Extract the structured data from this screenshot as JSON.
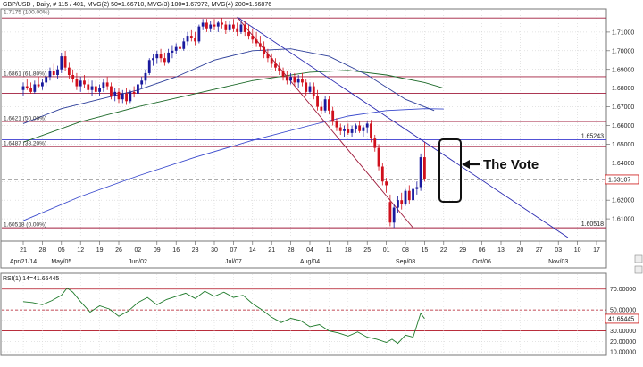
{
  "header": {
    "symbol_line": "GBP/USD , Daily, # 115 / 401, MVG(2) 50=1.66710, MVG(3) 100=1.67972, MVG(4) 200=1.66876",
    "top_partial_label": "1.7175 (100.00%)"
  },
  "colors": {
    "bull_candle": "#1a1a9e",
    "bear_candle": "#d0101c",
    "mva50": "#2e3f9a",
    "mva100": "#1e6a2a",
    "mva200": "#3a4acd",
    "fib_line": "#a01c3c",
    "trend_line": "#2a2ab0",
    "rsi_line": "#1e7a2a"
  },
  "price_panel": {
    "ylim": [
      1.6,
      1.72
    ],
    "y_ticks": [
      "1.71000",
      "1.70000",
      "1.69000",
      "1.68000",
      "1.67000",
      "1.66000",
      "1.65000",
      "1.64000",
      "1.63000",
      "1.62000",
      "1.61000"
    ],
    "fib_levels": [
      {
        "price": 1.7175,
        "label": ""
      },
      {
        "price": 1.6861,
        "label": "1.6861 (61.80%)"
      },
      {
        "price": 1.6621,
        "label": "1.6621 (50.00%)"
      },
      {
        "price": 1.6487,
        "label": "1.6487 (38.20%)"
      },
      {
        "price": 1.6052,
        "label": "1.60518 (0.00%)"
      }
    ],
    "extra_levels": [
      {
        "price": 1.6772,
        "style": "solid"
      },
      {
        "price": 1.6524,
        "style": "blue"
      },
      {
        "price": 1.6311,
        "style": "dashed"
      }
    ],
    "right_labels": [
      {
        "price": 1.6524,
        "text": "1.65243",
        "boxed": false
      },
      {
        "price": 1.6311,
        "text": "1.63107",
        "boxed": true
      },
      {
        "price": 1.6052,
        "text": "1.60518",
        "boxed": false
      }
    ],
    "annotation": "The Vote"
  },
  "x_axis": {
    "day_ticks": [
      "21",
      "28",
      "05",
      "12",
      "19",
      "26",
      "02",
      "09",
      "16",
      "23",
      "30",
      "07",
      "14",
      "21",
      "28",
      "04",
      "11",
      "18",
      "25",
      "01",
      "08",
      "15",
      "22",
      "29",
      "06",
      "13",
      "20",
      "27",
      "03",
      "10",
      "17"
    ],
    "month_labels": [
      {
        "text": "Apr/21/14",
        "week": 0
      },
      {
        "text": "May/05",
        "week": 2
      },
      {
        "text": "Jun/02",
        "week": 6
      },
      {
        "text": "Jul/07",
        "week": 11
      },
      {
        "text": "Aug/04",
        "week": 15
      },
      {
        "text": "Sep/08",
        "week": 20
      },
      {
        "text": "Oct/06",
        "week": 24
      },
      {
        "text": "Nov/03",
        "week": 28
      }
    ]
  },
  "candles": [
    {
      "w": 0.0,
      "o": 1.679,
      "h": 1.683,
      "l": 1.676,
      "c": 1.681
    },
    {
      "w": 0.2,
      "o": 1.681,
      "h": 1.685,
      "l": 1.679,
      "c": 1.68
    },
    {
      "w": 0.4,
      "o": 1.68,
      "h": 1.683,
      "l": 1.677,
      "c": 1.678
    },
    {
      "w": 0.6,
      "o": 1.678,
      "h": 1.684,
      "l": 1.677,
      "c": 1.682
    },
    {
      "w": 0.8,
      "o": 1.682,
      "h": 1.686,
      "l": 1.68,
      "c": 1.681
    },
    {
      "w": 1.0,
      "o": 1.681,
      "h": 1.685,
      "l": 1.679,
      "c": 1.683
    },
    {
      "w": 1.2,
      "o": 1.683,
      "h": 1.688,
      "l": 1.681,
      "c": 1.686
    },
    {
      "w": 1.4,
      "o": 1.686,
      "h": 1.691,
      "l": 1.684,
      "c": 1.689
    },
    {
      "w": 1.6,
      "o": 1.689,
      "h": 1.693,
      "l": 1.686,
      "c": 1.687
    },
    {
      "w": 1.8,
      "o": 1.687,
      "h": 1.692,
      "l": 1.685,
      "c": 1.69
    },
    {
      "w": 2.0,
      "o": 1.69,
      "h": 1.699,
      "l": 1.688,
      "c": 1.697
    },
    {
      "w": 2.2,
      "o": 1.697,
      "h": 1.7,
      "l": 1.689,
      "c": 1.691
    },
    {
      "w": 2.4,
      "o": 1.691,
      "h": 1.694,
      "l": 1.685,
      "c": 1.687
    },
    {
      "w": 2.6,
      "o": 1.687,
      "h": 1.69,
      "l": 1.683,
      "c": 1.685
    },
    {
      "w": 2.8,
      "o": 1.685,
      "h": 1.688,
      "l": 1.679,
      "c": 1.681
    },
    {
      "w": 3.0,
      "o": 1.681,
      "h": 1.686,
      "l": 1.678,
      "c": 1.684
    },
    {
      "w": 3.2,
      "o": 1.684,
      "h": 1.687,
      "l": 1.68,
      "c": 1.682
    },
    {
      "w": 3.4,
      "o": 1.682,
      "h": 1.685,
      "l": 1.677,
      "c": 1.679
    },
    {
      "w": 3.6,
      "o": 1.679,
      "h": 1.684,
      "l": 1.676,
      "c": 1.681
    },
    {
      "w": 3.8,
      "o": 1.681,
      "h": 1.684,
      "l": 1.676,
      "c": 1.678
    },
    {
      "w": 4.0,
      "o": 1.678,
      "h": 1.682,
      "l": 1.676,
      "c": 1.68
    },
    {
      "w": 4.2,
      "o": 1.68,
      "h": 1.685,
      "l": 1.678,
      "c": 1.683
    },
    {
      "w": 4.4,
      "o": 1.683,
      "h": 1.686,
      "l": 1.679,
      "c": 1.681
    },
    {
      "w": 4.6,
      "o": 1.681,
      "h": 1.683,
      "l": 1.674,
      "c": 1.676
    },
    {
      "w": 4.8,
      "o": 1.676,
      "h": 1.68,
      "l": 1.673,
      "c": 1.678
    },
    {
      "w": 5.0,
      "o": 1.678,
      "h": 1.68,
      "l": 1.672,
      "c": 1.674
    },
    {
      "w": 5.2,
      "o": 1.674,
      "h": 1.679,
      "l": 1.672,
      "c": 1.677
    },
    {
      "w": 5.4,
      "o": 1.677,
      "h": 1.68,
      "l": 1.671,
      "c": 1.673
    },
    {
      "w": 5.6,
      "o": 1.673,
      "h": 1.679,
      "l": 1.672,
      "c": 1.678
    },
    {
      "w": 5.8,
      "o": 1.678,
      "h": 1.681,
      "l": 1.675,
      "c": 1.677
    },
    {
      "w": 6.0,
      "o": 1.677,
      "h": 1.683,
      "l": 1.676,
      "c": 1.682
    },
    {
      "w": 6.2,
      "o": 1.682,
      "h": 1.686,
      "l": 1.68,
      "c": 1.684
    },
    {
      "w": 6.4,
      "o": 1.684,
      "h": 1.69,
      "l": 1.682,
      "c": 1.688
    },
    {
      "w": 6.6,
      "o": 1.688,
      "h": 1.696,
      "l": 1.687,
      "c": 1.695
    },
    {
      "w": 6.8,
      "o": 1.695,
      "h": 1.698,
      "l": 1.692,
      "c": 1.696
    },
    {
      "w": 7.0,
      "o": 1.696,
      "h": 1.7,
      "l": 1.693,
      "c": 1.698
    },
    {
      "w": 7.2,
      "o": 1.698,
      "h": 1.701,
      "l": 1.694,
      "c": 1.696
    },
    {
      "w": 7.4,
      "o": 1.696,
      "h": 1.699,
      "l": 1.692,
      "c": 1.694
    },
    {
      "w": 7.6,
      "o": 1.694,
      "h": 1.701,
      "l": 1.693,
      "c": 1.699
    },
    {
      "w": 7.8,
      "o": 1.699,
      "h": 1.703,
      "l": 1.696,
      "c": 1.7
    },
    {
      "w": 8.0,
      "o": 1.7,
      "h": 1.704,
      "l": 1.698,
      "c": 1.702
    },
    {
      "w": 8.2,
      "o": 1.702,
      "h": 1.705,
      "l": 1.699,
      "c": 1.701
    },
    {
      "w": 8.4,
      "o": 1.701,
      "h": 1.707,
      "l": 1.7,
      "c": 1.705
    },
    {
      "w": 8.6,
      "o": 1.705,
      "h": 1.71,
      "l": 1.703,
      "c": 1.708
    },
    {
      "w": 8.8,
      "o": 1.708,
      "h": 1.711,
      "l": 1.705,
      "c": 1.707
    },
    {
      "w": 9.0,
      "o": 1.707,
      "h": 1.71,
      "l": 1.703,
      "c": 1.705
    },
    {
      "w": 9.2,
      "o": 1.705,
      "h": 1.714,
      "l": 1.704,
      "c": 1.713
    },
    {
      "w": 9.4,
      "o": 1.713,
      "h": 1.717,
      "l": 1.711,
      "c": 1.715
    },
    {
      "w": 9.6,
      "o": 1.715,
      "h": 1.717,
      "l": 1.71,
      "c": 1.712
    },
    {
      "w": 9.8,
      "o": 1.712,
      "h": 1.716,
      "l": 1.71,
      "c": 1.714
    },
    {
      "w": 10.0,
      "o": 1.714,
      "h": 1.717,
      "l": 1.711,
      "c": 1.713
    },
    {
      "w": 10.2,
      "o": 1.713,
      "h": 1.716,
      "l": 1.71,
      "c": 1.715
    },
    {
      "w": 10.4,
      "o": 1.715,
      "h": 1.7175,
      "l": 1.712,
      "c": 1.714
    },
    {
      "w": 10.6,
      "o": 1.714,
      "h": 1.716,
      "l": 1.709,
      "c": 1.711
    },
    {
      "w": 10.8,
      "o": 1.711,
      "h": 1.716,
      "l": 1.71,
      "c": 1.714
    },
    {
      "w": 11.0,
      "o": 1.714,
      "h": 1.717,
      "l": 1.71,
      "c": 1.712
    },
    {
      "w": 11.2,
      "o": 1.712,
      "h": 1.715,
      "l": 1.708,
      "c": 1.71
    },
    {
      "w": 11.4,
      "o": 1.71,
      "h": 1.716,
      "l": 1.709,
      "c": 1.714
    },
    {
      "w": 11.6,
      "o": 1.714,
      "h": 1.716,
      "l": 1.708,
      "c": 1.71
    },
    {
      "w": 11.8,
      "o": 1.71,
      "h": 1.714,
      "l": 1.706,
      "c": 1.708
    },
    {
      "w": 12.0,
      "o": 1.708,
      "h": 1.712,
      "l": 1.704,
      "c": 1.706
    },
    {
      "w": 12.2,
      "o": 1.706,
      "h": 1.71,
      "l": 1.702,
      "c": 1.704
    },
    {
      "w": 12.4,
      "o": 1.704,
      "h": 1.708,
      "l": 1.7,
      "c": 1.702
    },
    {
      "w": 12.6,
      "o": 1.702,
      "h": 1.705,
      "l": 1.696,
      "c": 1.698
    },
    {
      "w": 12.8,
      "o": 1.698,
      "h": 1.701,
      "l": 1.694,
      "c": 1.696
    },
    {
      "w": 13.0,
      "o": 1.696,
      "h": 1.698,
      "l": 1.691,
      "c": 1.693
    },
    {
      "w": 13.2,
      "o": 1.693,
      "h": 1.696,
      "l": 1.689,
      "c": 1.691
    },
    {
      "w": 13.4,
      "o": 1.691,
      "h": 1.694,
      "l": 1.687,
      "c": 1.689
    },
    {
      "w": 13.6,
      "o": 1.689,
      "h": 1.691,
      "l": 1.684,
      "c": 1.686
    },
    {
      "w": 13.8,
      "o": 1.686,
      "h": 1.689,
      "l": 1.682,
      "c": 1.684
    },
    {
      "w": 14.0,
      "o": 1.684,
      "h": 1.688,
      "l": 1.682,
      "c": 1.686
    },
    {
      "w": 14.2,
      "o": 1.686,
      "h": 1.688,
      "l": 1.681,
      "c": 1.683
    },
    {
      "w": 14.4,
      "o": 1.683,
      "h": 1.687,
      "l": 1.68,
      "c": 1.685
    },
    {
      "w": 14.6,
      "o": 1.685,
      "h": 1.688,
      "l": 1.681,
      "c": 1.683
    },
    {
      "w": 14.8,
      "o": 1.683,
      "h": 1.685,
      "l": 1.676,
      "c": 1.678
    },
    {
      "w": 15.0,
      "o": 1.678,
      "h": 1.683,
      "l": 1.677,
      "c": 1.681
    },
    {
      "w": 15.2,
      "o": 1.681,
      "h": 1.683,
      "l": 1.674,
      "c": 1.676
    },
    {
      "w": 15.4,
      "o": 1.676,
      "h": 1.679,
      "l": 1.668,
      "c": 1.67
    },
    {
      "w": 15.6,
      "o": 1.67,
      "h": 1.673,
      "l": 1.666,
      "c": 1.668
    },
    {
      "w": 15.8,
      "o": 1.668,
      "h": 1.676,
      "l": 1.667,
      "c": 1.674
    },
    {
      "w": 16.0,
      "o": 1.674,
      "h": 1.676,
      "l": 1.666,
      "c": 1.668
    },
    {
      "w": 16.2,
      "o": 1.668,
      "h": 1.67,
      "l": 1.66,
      "c": 1.662
    },
    {
      "w": 16.4,
      "o": 1.662,
      "h": 1.664,
      "l": 1.657,
      "c": 1.659
    },
    {
      "w": 16.6,
      "o": 1.659,
      "h": 1.661,
      "l": 1.655,
      "c": 1.657
    },
    {
      "w": 16.8,
      "o": 1.657,
      "h": 1.66,
      "l": 1.654,
      "c": 1.658
    },
    {
      "w": 17.0,
      "o": 1.658,
      "h": 1.661,
      "l": 1.655,
      "c": 1.656
    },
    {
      "w": 17.2,
      "o": 1.656,
      "h": 1.66,
      "l": 1.654,
      "c": 1.658
    },
    {
      "w": 17.4,
      "o": 1.658,
      "h": 1.661,
      "l": 1.656,
      "c": 1.66
    },
    {
      "w": 17.6,
      "o": 1.66,
      "h": 1.662,
      "l": 1.656,
      "c": 1.657
    },
    {
      "w": 17.8,
      "o": 1.657,
      "h": 1.66,
      "l": 1.654,
      "c": 1.659
    },
    {
      "w": 18.0,
      "o": 1.659,
      "h": 1.662,
      "l": 1.656,
      "c": 1.661
    },
    {
      "w": 18.2,
      "o": 1.661,
      "h": 1.663,
      "l": 1.651,
      "c": 1.653
    },
    {
      "w": 18.4,
      "o": 1.653,
      "h": 1.655,
      "l": 1.646,
      "c": 1.648
    },
    {
      "w": 18.6,
      "o": 1.648,
      "h": 1.65,
      "l": 1.636,
      "c": 1.638
    },
    {
      "w": 18.8,
      "o": 1.638,
      "h": 1.64,
      "l": 1.628,
      "c": 1.63
    },
    {
      "w": 19.0,
      "o": 1.63,
      "h": 1.632,
      "l": 1.624,
      "c": 1.628
    },
    {
      "w": 19.2,
      "o": 1.619,
      "h": 1.623,
      "l": 1.606,
      "c": 1.608
    },
    {
      "w": 19.4,
      "o": 1.608,
      "h": 1.618,
      "l": 1.6052,
      "c": 1.616
    },
    {
      "w": 19.6,
      "o": 1.616,
      "h": 1.622,
      "l": 1.613,
      "c": 1.62
    },
    {
      "w": 19.8,
      "o": 1.62,
      "h": 1.624,
      "l": 1.615,
      "c": 1.618
    },
    {
      "w": 20.0,
      "o": 1.618,
      "h": 1.626,
      "l": 1.617,
      "c": 1.625
    },
    {
      "w": 20.2,
      "o": 1.625,
      "h": 1.628,
      "l": 1.618,
      "c": 1.62
    },
    {
      "w": 20.4,
      "o": 1.62,
      "h": 1.627,
      "l": 1.617,
      "c": 1.626
    },
    {
      "w": 20.6,
      "o": 1.626,
      "h": 1.63,
      "l": 1.623,
      "c": 1.627
    },
    {
      "w": 20.8,
      "o": 1.627,
      "h": 1.645,
      "l": 1.625,
      "c": 1.643
    },
    {
      "w": 21.0,
      "o": 1.643,
      "h": 1.651,
      "l": 1.63,
      "c": 1.6311
    }
  ],
  "rsi_panel": {
    "title": "RSI(1) 14=41.65445",
    "ylim": [
      10,
      80
    ],
    "y_ticks": [
      "70.00000",
      "50.00000",
      "40.00000",
      "30.00000",
      "20.00000",
      "10.00000"
    ],
    "red_lines": [
      70,
      50,
      30
    ],
    "current_value_label": "41.65445",
    "current_value": 41.65,
    "values": [
      {
        "w": 0.0,
        "v": 58
      },
      {
        "w": 0.5,
        "v": 57
      },
      {
        "w": 1.0,
        "v": 55
      },
      {
        "w": 1.5,
        "v": 59
      },
      {
        "w": 2.0,
        "v": 64
      },
      {
        "w": 2.3,
        "v": 71
      },
      {
        "w": 2.6,
        "v": 67
      },
      {
        "w": 3.0,
        "v": 58
      },
      {
        "w": 3.5,
        "v": 48
      },
      {
        "w": 4.0,
        "v": 54
      },
      {
        "w": 4.5,
        "v": 51
      },
      {
        "w": 5.0,
        "v": 44
      },
      {
        "w": 5.5,
        "v": 49
      },
      {
        "w": 6.0,
        "v": 57
      },
      {
        "w": 6.5,
        "v": 62
      },
      {
        "w": 7.0,
        "v": 55
      },
      {
        "w": 7.5,
        "v": 60
      },
      {
        "w": 8.0,
        "v": 63
      },
      {
        "w": 8.5,
        "v": 66
      },
      {
        "w": 9.0,
        "v": 61
      },
      {
        "w": 9.5,
        "v": 68
      },
      {
        "w": 10.0,
        "v": 63
      },
      {
        "w": 10.5,
        "v": 67
      },
      {
        "w": 11.0,
        "v": 62
      },
      {
        "w": 11.5,
        "v": 64
      },
      {
        "w": 12.0,
        "v": 56
      },
      {
        "w": 12.5,
        "v": 50
      },
      {
        "w": 13.0,
        "v": 43
      },
      {
        "w": 13.5,
        "v": 38
      },
      {
        "w": 14.0,
        "v": 42
      },
      {
        "w": 14.5,
        "v": 40
      },
      {
        "w": 15.0,
        "v": 34
      },
      {
        "w": 15.5,
        "v": 36
      },
      {
        "w": 16.0,
        "v": 30
      },
      {
        "w": 16.5,
        "v": 28
      },
      {
        "w": 17.0,
        "v": 25
      },
      {
        "w": 17.5,
        "v": 29
      },
      {
        "w": 18.0,
        "v": 24
      },
      {
        "w": 18.5,
        "v": 22
      },
      {
        "w": 19.0,
        "v": 19
      },
      {
        "w": 19.3,
        "v": 22
      },
      {
        "w": 19.6,
        "v": 18
      },
      {
        "w": 20.0,
        "v": 26
      },
      {
        "w": 20.4,
        "v": 24
      },
      {
        "w": 20.8,
        "v": 47
      },
      {
        "w": 21.0,
        "v": 41.65
      }
    ]
  },
  "trend_lines": [
    {
      "from": {
        "w": 11.2,
        "p": 1.718
      },
      "to": {
        "w": 20.4,
        "p": 1.6052
      },
      "color": "fib"
    },
    {
      "from": {
        "w": 11.2,
        "p": 1.718
      },
      "to": {
        "w": 28.5,
        "p": 1.6
      },
      "color": "trend"
    }
  ],
  "mva": {
    "mva50": [
      {
        "w": 0,
        "p": 1.661
      },
      {
        "w": 2,
        "p": 1.669
      },
      {
        "w": 4,
        "p": 1.674
      },
      {
        "w": 6,
        "p": 1.679
      },
      {
        "w": 8,
        "p": 1.686
      },
      {
        "w": 10,
        "p": 1.695
      },
      {
        "w": 12,
        "p": 1.7
      },
      {
        "w": 14,
        "p": 1.701
      },
      {
        "w": 16,
        "p": 1.697
      },
      {
        "w": 18,
        "p": 1.687
      },
      {
        "w": 20,
        "p": 1.674
      },
      {
        "w": 21.5,
        "p": 1.668
      }
    ],
    "mva100": [
      {
        "w": 0,
        "p": 1.651
      },
      {
        "w": 3,
        "p": 1.662
      },
      {
        "w": 6,
        "p": 1.67
      },
      {
        "w": 9,
        "p": 1.677
      },
      {
        "w": 12,
        "p": 1.684
      },
      {
        "w": 15,
        "p": 1.6885
      },
      {
        "w": 17,
        "p": 1.6895
      },
      {
        "w": 19,
        "p": 1.687
      },
      {
        "w": 21,
        "p": 1.683
      },
      {
        "w": 22,
        "p": 1.68
      }
    ],
    "mva200": [
      {
        "w": 0,
        "p": 1.609
      },
      {
        "w": 3,
        "p": 1.622
      },
      {
        "w": 6,
        "p": 1.633
      },
      {
        "w": 9,
        "p": 1.643
      },
      {
        "w": 12,
        "p": 1.652
      },
      {
        "w": 15,
        "p": 1.66
      },
      {
        "w": 17,
        "p": 1.665
      },
      {
        "w": 19,
        "p": 1.668
      },
      {
        "w": 21,
        "p": 1.669
      },
      {
        "w": 22,
        "p": 1.6688
      }
    ]
  }
}
